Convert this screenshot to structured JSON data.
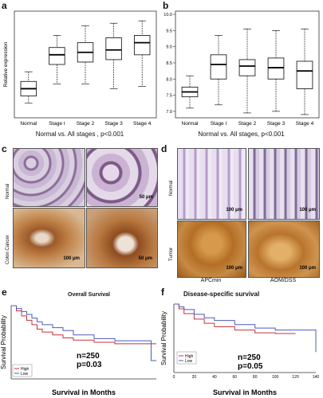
{
  "panels": {
    "a": {
      "letter": "a",
      "ylabel": "Relative expression",
      "caption": "Normal vs. All stages , p<0.001",
      "categories": [
        "Normal",
        "Stage I",
        "Stage 2",
        "Stage 3",
        "Stage 4"
      ]
    },
    "b": {
      "letter": "b",
      "caption": "Normal vs. All stages, p<0.001",
      "categories": [
        "Normal",
        "Stage I",
        "Stage 2",
        "Stage 3",
        "Stage 4"
      ],
      "yticks": [
        "7.0",
        "7.5",
        "8.0",
        "8.5",
        "9.0",
        "9.5",
        "10.0"
      ]
    },
    "c": {
      "letter": "c",
      "rows": [
        "Normal",
        "Colon Cancer"
      ],
      "scales": [
        "50 μm",
        "100 μm",
        "50 μm"
      ]
    },
    "d": {
      "letter": "d",
      "rows": [
        "Normal",
        "Tumor"
      ],
      "cols": [
        "APCmin",
        "AOM/DSS"
      ],
      "scales": [
        "100 μm",
        "100 μm",
        "100 μm",
        "100 μm"
      ]
    },
    "e": {
      "letter": "e",
      "title": "Overall Survival",
      "xlabel": "Survival in Months",
      "ylabel": "Survival Probability",
      "n": "n=250",
      "p": "p=0.03",
      "legend": [
        "High",
        "Low"
      ]
    },
    "f": {
      "letter": "f",
      "title": "Disease-specific survival",
      "xlabel": "Survival in Months",
      "ylabel": "Survival Probability",
      "n": "n=250",
      "p": "p=0.05",
      "legend": [
        "High",
        "Low"
      ],
      "xticks": [
        "0",
        "20",
        "40",
        "60",
        "80",
        "100",
        "120",
        "140"
      ]
    }
  },
  "colors": {
    "high": "#c8323c",
    "low": "#4a5bbf",
    "box": "#222222",
    "ihc_normal": "#b9a6cf",
    "ihc_tumor": "#b8772a"
  },
  "chart_data": [
    {
      "type": "box",
      "panel": "a",
      "categories": [
        "Normal",
        "Stage I",
        "Stage 2",
        "Stage 3",
        "Stage 4"
      ],
      "boxes": [
        {
          "min": 10,
          "q1": 13,
          "median": 16,
          "q3": 19,
          "max": 23
        },
        {
          "min": 18,
          "q1": 26,
          "median": 30,
          "q3": 33,
          "max": 38
        },
        {
          "min": 18,
          "q1": 27,
          "median": 31,
          "q3": 35,
          "max": 42
        },
        {
          "min": 16,
          "q1": 28,
          "median": 32,
          "q3": 37,
          "max": 43
        },
        {
          "min": 17,
          "q1": 30,
          "median": 35,
          "q3": 38,
          "max": 44
        }
      ],
      "ylim": [
        4,
        48
      ]
    },
    {
      "type": "box",
      "panel": "b",
      "categories": [
        "Normal",
        "Stage I",
        "Stage 2",
        "Stage 3",
        "Stage 4"
      ],
      "boxes": [
        {
          "min": 7.1,
          "q1": 7.45,
          "median": 7.6,
          "q3": 7.75,
          "max": 8.1
        },
        {
          "min": 7.2,
          "q1": 8.0,
          "median": 8.45,
          "q3": 8.75,
          "max": 9.35
        },
        {
          "min": 6.95,
          "q1": 8.1,
          "median": 8.4,
          "q3": 8.6,
          "max": 9.55
        },
        {
          "min": 7.0,
          "q1": 8.0,
          "median": 8.35,
          "q3": 8.65,
          "max": 9.5
        },
        {
          "min": 6.9,
          "q1": 7.7,
          "median": 8.25,
          "q3": 8.55,
          "max": 9.55
        }
      ],
      "ylim": [
        6.8,
        10.1
      ]
    },
    {
      "type": "line",
      "panel": "e",
      "xlim": [
        0,
        140
      ],
      "ylim": [
        0,
        1
      ],
      "series": [
        {
          "name": "High",
          "x": [
            0,
            5,
            10,
            15,
            20,
            25,
            30,
            40,
            50,
            60,
            80,
            100,
            135,
            140
          ],
          "y": [
            1.0,
            0.93,
            0.86,
            0.8,
            0.74,
            0.68,
            0.64,
            0.6,
            0.56,
            0.53,
            0.5,
            0.48,
            0.48,
            0.48
          ]
        },
        {
          "name": "Low",
          "x": [
            0,
            5,
            10,
            15,
            20,
            25,
            30,
            40,
            50,
            60,
            80,
            100,
            130,
            135,
            140
          ],
          "y": [
            1.0,
            0.96,
            0.92,
            0.88,
            0.83,
            0.78,
            0.74,
            0.7,
            0.66,
            0.6,
            0.55,
            0.52,
            0.52,
            0.25,
            0.25
          ]
        }
      ]
    },
    {
      "type": "line",
      "panel": "f",
      "xlim": [
        0,
        140
      ],
      "ylim": [
        0,
        1
      ],
      "series": [
        {
          "name": "High",
          "x": [
            0,
            5,
            10,
            20,
            30,
            40,
            60,
            80,
            100,
            120
          ],
          "y": [
            1.0,
            0.93,
            0.86,
            0.78,
            0.72,
            0.67,
            0.62,
            0.58,
            0.57,
            0.57
          ]
        },
        {
          "name": "Low",
          "x": [
            0,
            5,
            10,
            20,
            30,
            40,
            60,
            80,
            100,
            135,
            140
          ],
          "y": [
            1.0,
            0.96,
            0.92,
            0.85,
            0.8,
            0.76,
            0.7,
            0.65,
            0.62,
            0.62,
            0.3
          ]
        }
      ]
    }
  ]
}
